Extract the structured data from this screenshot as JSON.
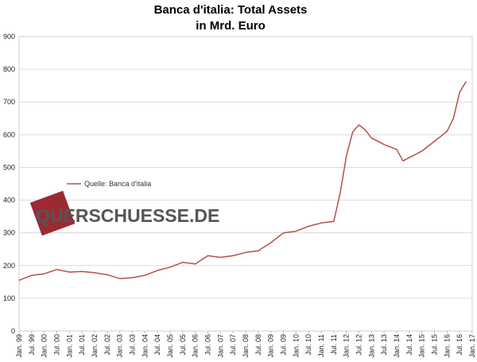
{
  "chart_data": {
    "type": "line",
    "title": "Banca d'italia: Total Assets",
    "subtitle": "in Mrd. Euro",
    "xlabel": "",
    "ylabel": "",
    "ylim": [
      0,
      900
    ],
    "yticks": [
      "0",
      "100",
      "200",
      "300",
      "400",
      "500",
      "600",
      "700",
      "800",
      "900"
    ],
    "xticks": [
      "Jan. 99",
      "Jul. 99",
      "Jan. 00",
      "Jul. 00",
      "Jan. 01",
      "Jul. 01",
      "Jan. 02",
      "Jul. 02",
      "Jan. 03",
      "Jul. 03",
      "Jan. 04",
      "Jul. 04",
      "Jan. 05",
      "Jul. 05",
      "Jan. 06",
      "Jul. 06",
      "Jan. 07",
      "Jul. 07",
      "Jan. 08",
      "Jul. 08",
      "Jan. 09",
      "Jul. 09",
      "Jan. 10",
      "Jul. 10",
      "Jan. 11",
      "Jul. 11",
      "Jan. 12",
      "Jul. 12",
      "Jan. 13",
      "Jul. 13",
      "Jan. 14",
      "Jul. 14",
      "Jan. 15",
      "Jul. 15",
      "Jan. 16",
      "Jul. 16",
      "Jan. 17"
    ],
    "grid": true,
    "legend_position": "left",
    "series": [
      {
        "name": "Quelle: Banca d'italia",
        "color": "#b5504b",
        "x": [
          "Jan. 99",
          "Jul. 99",
          "Jan. 00",
          "Jul. 00",
          "Jan. 01",
          "Jul. 01",
          "Jan. 02",
          "Jul. 02",
          "Jan. 03",
          "Jul. 03",
          "Jan. 04",
          "Jul. 04",
          "Jan. 05",
          "Jul. 05",
          "Jan. 06",
          "Jul. 06",
          "Jan. 07",
          "Jul. 07",
          "Jan. 08",
          "Jul. 08",
          "Jan. 09",
          "Jul. 09",
          "Jan. 10",
          "Jul. 10",
          "Jan. 11",
          "Jul. 11",
          "Oct. 11",
          "Jan. 12",
          "Apr. 12",
          "Jul. 12",
          "Oct. 12",
          "Jan. 13",
          "Jul. 13",
          "Jan. 14",
          "Apr. 14",
          "Jul. 14",
          "Jan. 15",
          "Jul. 15",
          "Jan. 16",
          "Apr. 16",
          "Jul. 16",
          "Oct. 16"
        ],
        "values": [
          155,
          170,
          175,
          188,
          180,
          182,
          178,
          172,
          160,
          163,
          170,
          185,
          195,
          210,
          205,
          230,
          225,
          230,
          240,
          245,
          270,
          300,
          305,
          320,
          330,
          335,
          420,
          535,
          608,
          630,
          615,
          590,
          570,
          555,
          520,
          530,
          550,
          580,
          610,
          650,
          730,
          762
        ]
      }
    ]
  },
  "watermark": {
    "text": "QUERSCHUESSE.DE",
    "accent": "#9b2a35"
  }
}
